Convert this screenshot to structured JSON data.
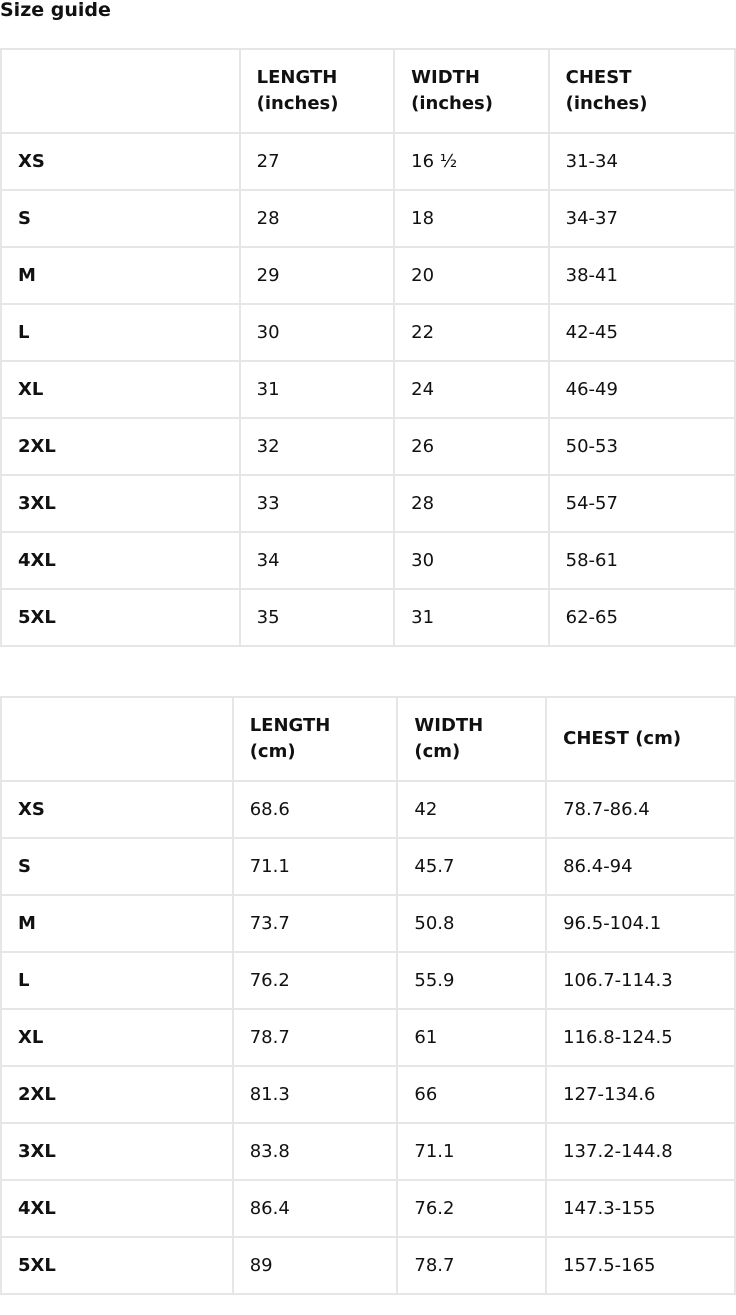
{
  "title": "Size guide",
  "tables": [
    {
      "headers": [
        "",
        "LENGTH (inches)",
        "WIDTH (inches)",
        "CHEST (inches)"
      ],
      "rows": [
        [
          "XS",
          "27",
          "16 ½",
          "31-34"
        ],
        [
          "S",
          "28",
          "18",
          "34-37"
        ],
        [
          "M",
          "29",
          "20",
          "38-41"
        ],
        [
          "L",
          "30",
          "22",
          "42-45"
        ],
        [
          "XL",
          "31",
          "24",
          "46-49"
        ],
        [
          "2XL",
          "32",
          "26",
          "50-53"
        ],
        [
          "3XL",
          "33",
          "28",
          "54-57"
        ],
        [
          "4XL",
          "34",
          "30",
          "58-61"
        ],
        [
          "5XL",
          "35",
          "31",
          "62-65"
        ]
      ]
    },
    {
      "headers": [
        "",
        "LENGTH (cm)",
        "WIDTH (cm)",
        "CHEST (cm)"
      ],
      "rows": [
        [
          "XS",
          "68.6",
          "42",
          "78.7-86.4"
        ],
        [
          "S",
          "71.1",
          "45.7",
          "86.4-94"
        ],
        [
          "M",
          "73.7",
          "50.8",
          "96.5-104.1"
        ],
        [
          "L",
          "76.2",
          "55.9",
          "106.7-114.3"
        ],
        [
          "XL",
          "78.7",
          "61",
          "116.8-124.5"
        ],
        [
          "2XL",
          "81.3",
          "66",
          "127-134.6"
        ],
        [
          "3XL",
          "83.8",
          "71.1",
          "137.2-144.8"
        ],
        [
          "4XL",
          "86.4",
          "76.2",
          "147.3-155"
        ],
        [
          "5XL",
          "89",
          "78.7",
          "157.5-165"
        ]
      ]
    }
  ]
}
